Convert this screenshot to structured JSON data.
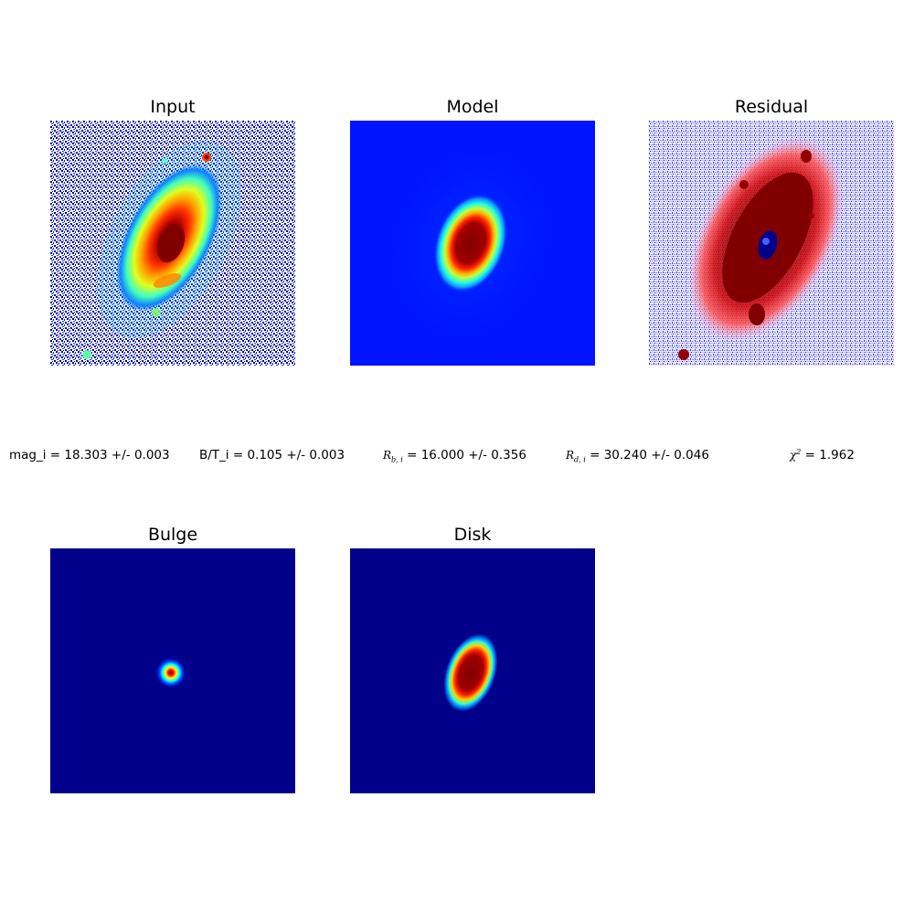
{
  "panels": {
    "input": {
      "title": "Input"
    },
    "model": {
      "title": "Model"
    },
    "residual": {
      "title": "Residual"
    },
    "bulge": {
      "title": "Bulge"
    },
    "disk": {
      "title": "Disk"
    }
  },
  "stats": {
    "mag": {
      "label": "mag_i",
      "text": " = 18.303 +/- 0.003"
    },
    "bt": {
      "label": "B/T_i",
      "text": " = 0.105 +/- 0.003"
    },
    "rb": {
      "symbol": "R",
      "sub": "b, i",
      "text": " = 16.000 +/- 0.356"
    },
    "rd": {
      "symbol": "R",
      "sub": "d, i",
      "text": " = 30.240 +/- 0.046"
    },
    "chi2": {
      "symbol": "χ",
      "sup": "2",
      "text": " = 1.962"
    }
  },
  "colors": {
    "jet_dark_blue": "#00008b",
    "jet_blue": "#0000ff",
    "jet_cyan": "#00ffff",
    "jet_yellow": "#ffff00",
    "jet_red": "#ff0000",
    "jet_dark_red": "#800000",
    "seismic_white": "#ffffff"
  }
}
